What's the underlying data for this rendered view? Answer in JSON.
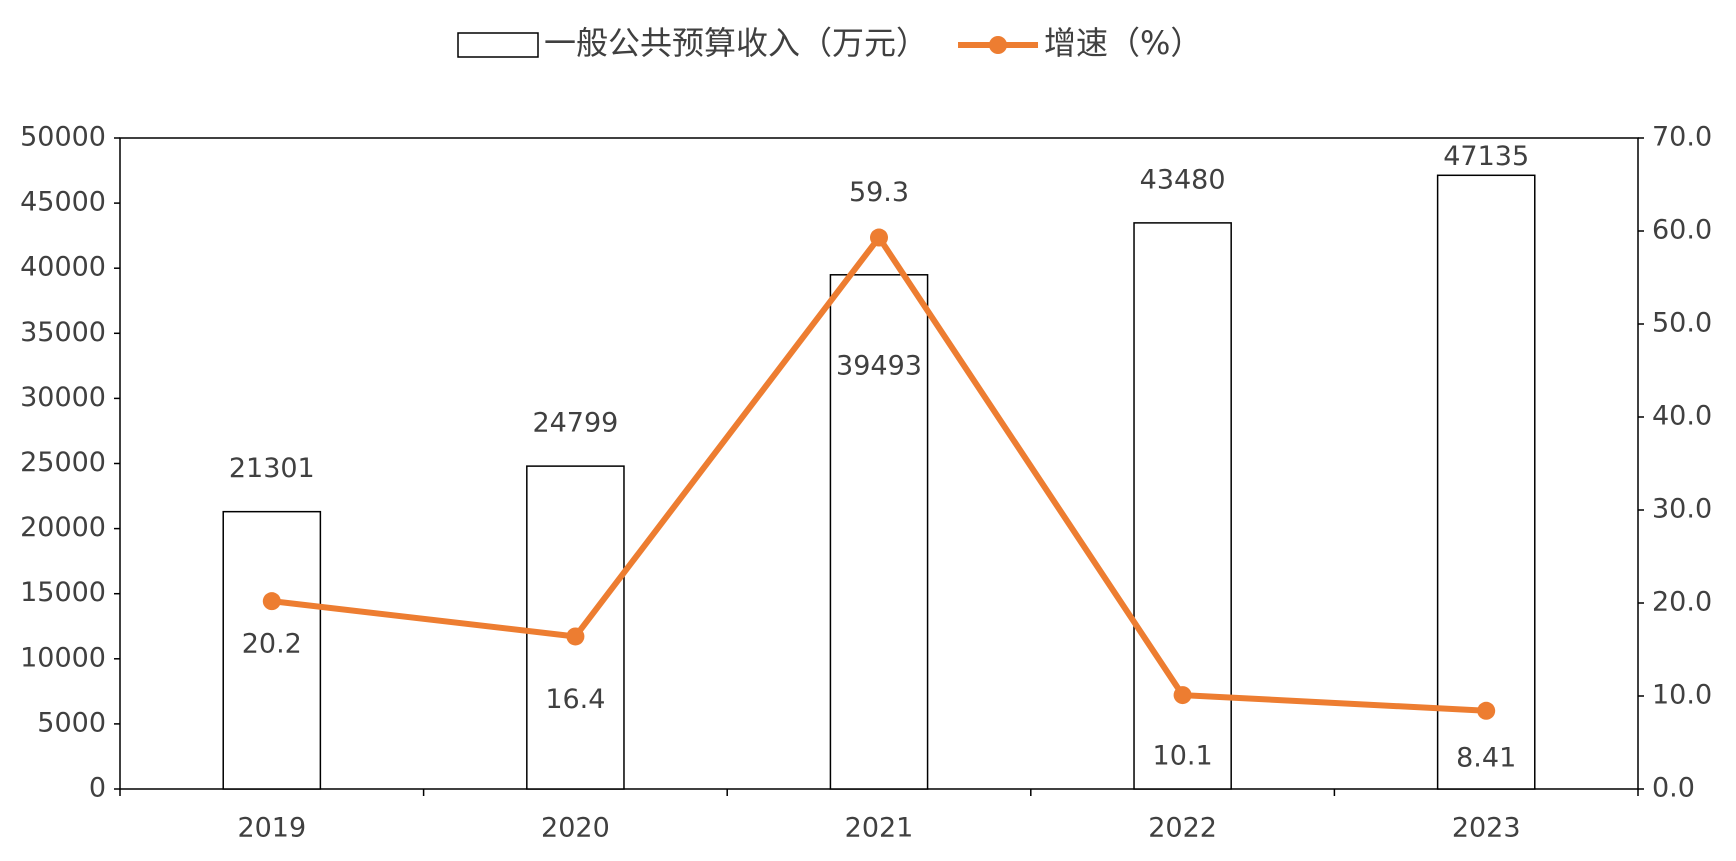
{
  "chart_data": {
    "type": "bar",
    "categories": [
      "2019",
      "2020",
      "2021",
      "2022",
      "2023"
    ],
    "series": [
      {
        "name": "一般公共预算收入（万元）",
        "type": "bar",
        "color": "#ffffff",
        "values": [
          21301,
          24799,
          39493,
          43480,
          47135
        ]
      },
      {
        "name": "增速（%）",
        "type": "line",
        "axis": "y2",
        "color": "#ed7d31",
        "values": [
          20.2,
          16.4,
          59.3,
          10.1,
          8.41
        ]
      }
    ],
    "ylim": [
      0,
      50000
    ],
    "yticks": [
      0,
      5000,
      10000,
      15000,
      20000,
      25000,
      30000,
      35000,
      40000,
      45000,
      50000
    ],
    "y2lim": [
      0,
      70
    ],
    "y2ticks": [
      {
        "value": 0,
        "label": "0.0"
      },
      {
        "value": 10,
        "label": "10.0"
      },
      {
        "value": 20,
        "label": "20.0"
      },
      {
        "value": 30,
        "label": "30.0"
      },
      {
        "value": 40,
        "label": "40.0"
      },
      {
        "value": 50,
        "label": "50.0"
      },
      {
        "value": 60,
        "label": "60.0"
      },
      {
        "value": 70,
        "label": "70.0"
      }
    ],
    "legend": "top"
  }
}
